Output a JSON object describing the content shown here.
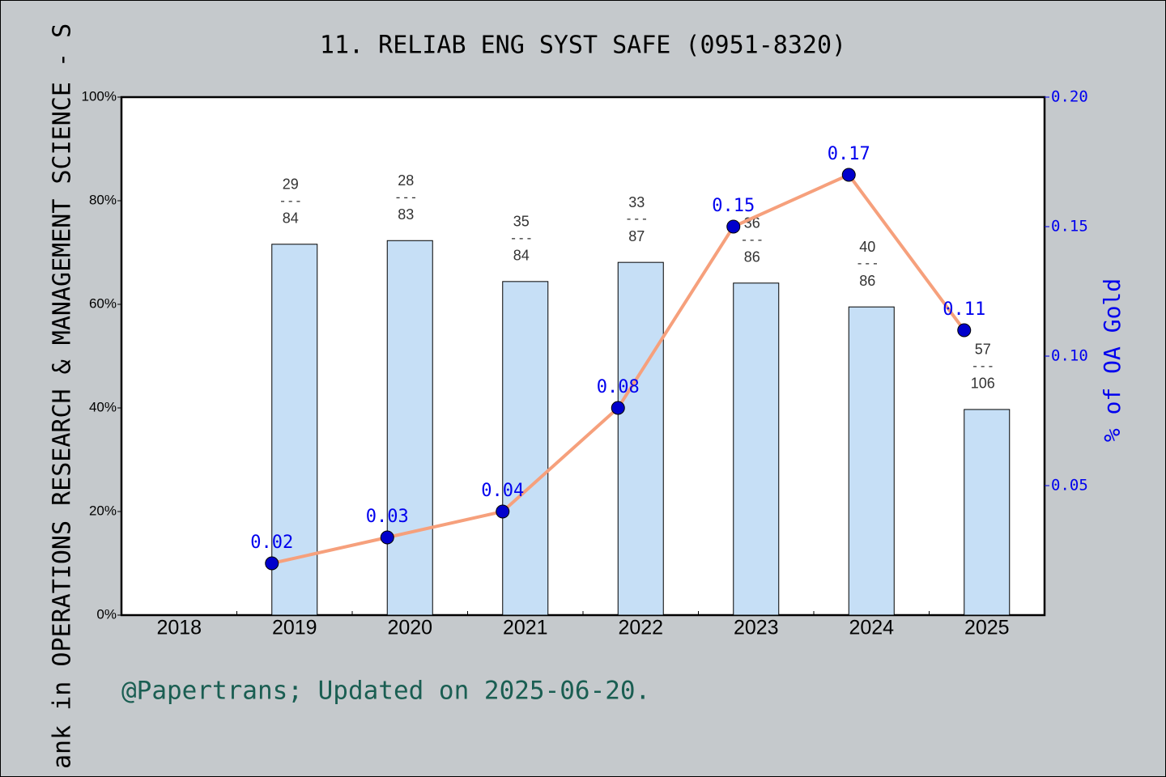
{
  "chart_data": {
    "type": "bar-line",
    "title": "11. RELIAB ENG SYST SAFE (0951-8320)",
    "y_label": "ank in OPERATIONS RESEARCH & MANAGEMENT SCIENCE - S",
    "y2_label": "% of OA Gold",
    "footer": "@Papertrans; Updated on 2025-06-20.",
    "categories": [
      "2018",
      "2019",
      "2020",
      "2021",
      "2022",
      "2023",
      "2024",
      "2025"
    ],
    "ylim": [
      0,
      100
    ],
    "yticks": [
      {
        "value": 0,
        "label": "0%"
      },
      {
        "value": 20,
        "label": "20%"
      },
      {
        "value": 40,
        "label": "40%"
      },
      {
        "value": 60,
        "label": "60%"
      },
      {
        "value": 80,
        "label": "80%"
      },
      {
        "value": 100,
        "label": "100%"
      }
    ],
    "y2lim": [
      0,
      0.2
    ],
    "y2ticks": [
      0.05,
      {
        "value": 0.1,
        "label": "0.10"
      },
      0.15,
      {
        "value": 0.2,
        "label": "0.20"
      }
    ],
    "separator": "---",
    "series": [
      {
        "type": "bar",
        "color": "#c6dff6",
        "values": [
          null,
          71.6,
          72.3,
          64.4,
          68.1,
          64.1,
          59.5,
          39.7
        ],
        "ranks": [
          null,
          29,
          28,
          35,
          33,
          36,
          40,
          57
        ],
        "totals": [
          null,
          84,
          83,
          84,
          87,
          86,
          86,
          106
        ]
      },
      {
        "type": "line",
        "axis": "y2",
        "color": "#f6a07c",
        "marker_color": "#0000cc",
        "values": [
          null,
          0.02,
          0.03,
          0.04,
          0.08,
          0.15,
          0.17,
          0.11
        ]
      }
    ]
  }
}
